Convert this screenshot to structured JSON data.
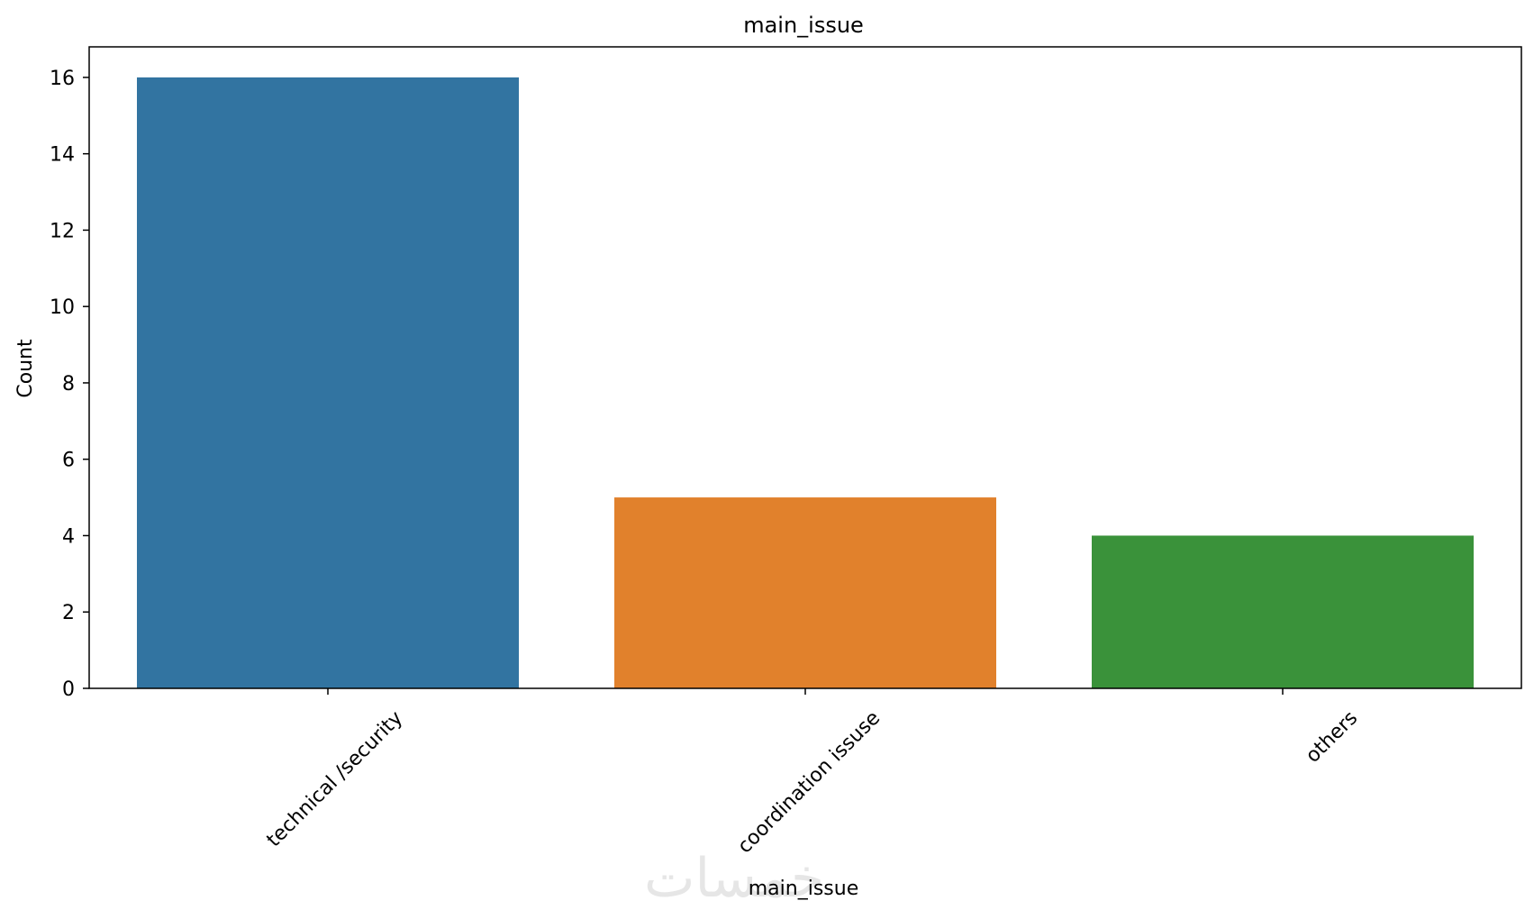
{
  "chart_data": {
    "type": "bar",
    "title": "main_issue",
    "xlabel": "main_issue",
    "ylabel": "Count",
    "categories": [
      "technical /security",
      "coordination issuse",
      "others"
    ],
    "values": [
      16,
      5,
      4
    ],
    "colors": [
      "#3274a1",
      "#e1812c",
      "#3a923a"
    ],
    "ylim": [
      0,
      16.8
    ],
    "yticks": [
      0,
      2,
      4,
      6,
      8,
      10,
      12,
      14,
      16
    ],
    "grid": false,
    "legend": "none"
  },
  "watermark": {
    "text": "خمسات"
  }
}
